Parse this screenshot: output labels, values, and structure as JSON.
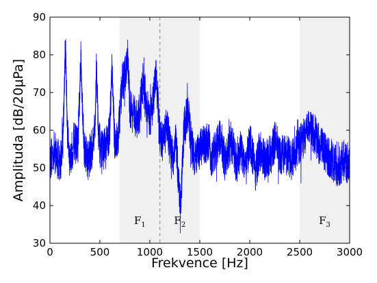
{
  "chart_data": {
    "type": "line",
    "title": "",
    "xlabel": "Frekvence [Hz]",
    "ylabel": "Amplituda [dB/20μPa]",
    "xlim": [
      0,
      3000
    ],
    "ylim": [
      30,
      90
    ],
    "xticks": [
      "0",
      "500",
      "1000",
      "1500",
      "2000",
      "2500",
      "3000"
    ],
    "yticks": [
      "30",
      "40",
      "50",
      "60",
      "70",
      "80",
      "90"
    ],
    "grid": false,
    "legend": "none",
    "line_color": "#0000ff",
    "band_color": "#f0f0f0",
    "bands": [
      {
        "name": "F1",
        "base": "F",
        "sub": "1",
        "x_start": 700,
        "x_end": 1100
      },
      {
        "name": "F2",
        "base": "F",
        "sub": "2",
        "x_start": 1100,
        "x_end": 1500
      },
      {
        "name": "F3",
        "base": "F",
        "sub": "3",
        "x_start": 2500,
        "x_end": 3000
      }
    ],
    "divider_x": 1100,
    "series": [
      {
        "x": [
          0,
          50,
          100,
          130,
          155,
          175,
          200,
          240,
          280,
          310,
          340,
          380,
          420,
          450,
          465,
          490,
          520,
          560,
          600,
          620,
          645,
          680,
          720,
          760,
          775,
          800,
          840,
          880,
          920,
          940,
          960,
          1000,
          1040,
          1060,
          1080,
          1100,
          1130,
          1170,
          1200,
          1230,
          1260,
          1290,
          1310,
          1340,
          1380,
          1420,
          1460,
          1500,
          1540,
          1590,
          1620,
          1660,
          1700,
          1760,
          1810,
          1860,
          1920,
          1960,
          2000,
          2060,
          2100,
          2150,
          2220,
          2260,
          2300,
          2350,
          2420,
          2470,
          2520,
          2580,
          2650,
          2700,
          2760,
          2830,
          2880,
          2940,
          3000
        ],
        "y": [
          52,
          55,
          50,
          58,
          83,
          60,
          52,
          57,
          56,
          79,
          56,
          52,
          55,
          60,
          77,
          57,
          55,
          55,
          60,
          78,
          58,
          57,
          72,
          75,
          81,
          66,
          64,
          62,
          70,
          75,
          67,
          63,
          69,
          75,
          68,
          58,
          57,
          61,
          56,
          52,
          58,
          45,
          40,
          60,
          65,
          56,
          52,
          55,
          56,
          57,
          52,
          55,
          58,
          51,
          57,
          52,
          55,
          50,
          57,
          49,
          55,
          52,
          54,
          58,
          53,
          54,
          52,
          55,
          57,
          60,
          59,
          56,
          54,
          52,
          50,
          52,
          51
        ]
      }
    ]
  }
}
